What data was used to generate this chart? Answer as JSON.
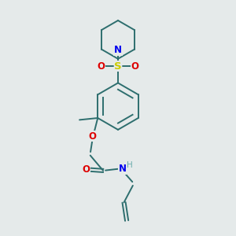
{
  "bg_color": "#e5eaea",
  "bond_color": "#2d6e6e",
  "N_color": "#0000ee",
  "O_color": "#dd0000",
  "S_color": "#cccc00",
  "H_color": "#6aacac",
  "line_width": 1.4,
  "font_size": 8.5,
  "fig_size": [
    3.0,
    3.0
  ],
  "dpi": 100,
  "xlim": [
    0,
    10
  ],
  "ylim": [
    0,
    10
  ]
}
